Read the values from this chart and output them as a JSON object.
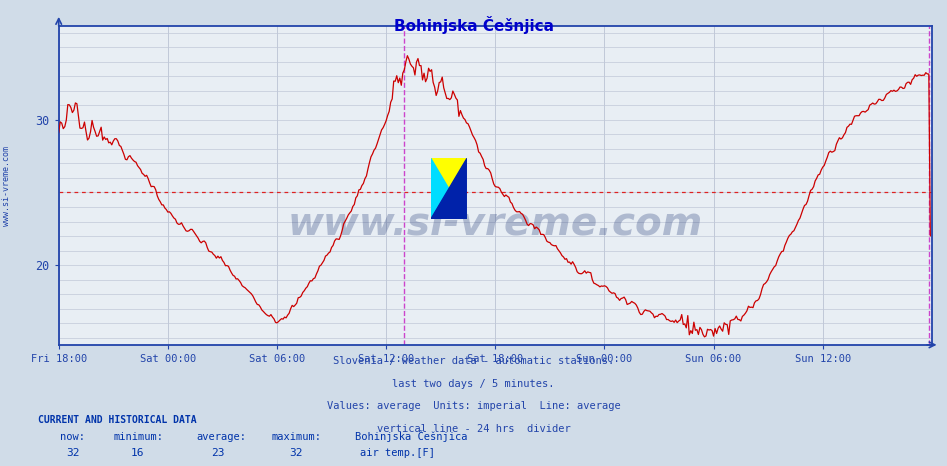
{
  "title": "Bohinjska Češnjica",
  "title_color": "#0000cc",
  "bg_color": "#d0dce8",
  "plot_bg_color": "#e8eef4",
  "line_color": "#cc0000",
  "avg_line_color": "#dd2222",
  "avg_line_y": 25,
  "vline_color": "#cc44cc",
  "vline_x_24hr": 228,
  "vline_x_right": 574,
  "grid_color": "#c0c8d8",
  "axis_color": "#2244aa",
  "tick_label_color": "#2244aa",
  "watermark_text": "www.si-vreme.com",
  "watermark_color": "#1a3070",
  "watermark_alpha": 0.28,
  "ylabel_text": "www.si-vreme.com",
  "footnote_lines": [
    "Slovenia / weather data - automatic stations.",
    "last two days / 5 minutes.",
    "Values: average  Units: imperial  Line: average",
    "vertical line - 24 hrs  divider"
  ],
  "footnote_color": "#2244aa",
  "bottom_label_color": "#0033aa",
  "now": 32,
  "minimum": 16,
  "average": 23,
  "maximum": 32,
  "station_name": "Bohinjska Češnjica",
  "series_label": "air temp.[F]",
  "legend_color": "#cc0000",
  "xtick_labels": [
    "Fri 18:00",
    "Sat 00:00",
    "Sat 06:00",
    "Sat 12:00",
    "Sat 18:00",
    "Sun 00:00",
    "Sun 06:00",
    "Sun 12:00"
  ],
  "xtick_positions": [
    0,
    72,
    144,
    216,
    288,
    360,
    432,
    504
  ],
  "ytick_labels": [
    "20",
    "30"
  ],
  "ytick_positions": [
    20,
    30
  ],
  "ylim": [
    14.5,
    36.5
  ],
  "xlim": [
    0,
    576
  ],
  "total_points": 576
}
